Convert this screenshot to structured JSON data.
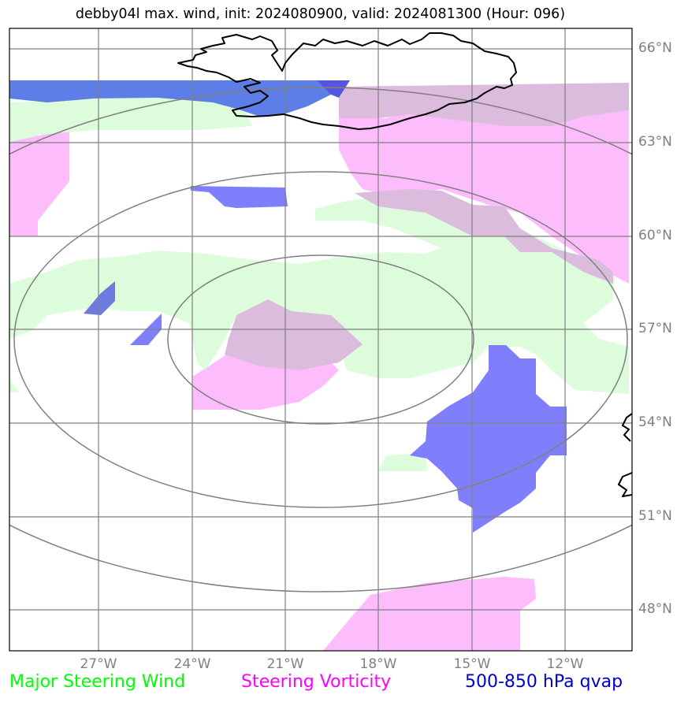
{
  "title": "debby04l max. wind, init: 2024080900, valid: 2024081300 (Hour: 096)",
  "lat_labels": [
    "66°N",
    "63°N",
    "60°N",
    "57°N",
    "54°N",
    "51°N",
    "48°N"
  ],
  "lon_labels": [
    "27°W",
    "24°W",
    "21°W",
    "18°W",
    "15°W",
    "12°W"
  ],
  "legend": {
    "wind": "Major Steering Wind",
    "vorticity": "Steering Vorticity",
    "qvap": "500-850 hPa qvap"
  },
  "colors": {
    "wind": "#00ff00",
    "wind_fill": "#dcfcdc",
    "vorticity": "#ff00ff",
    "vorticity_fill": "#fdbdfd",
    "overlap_fill": "#dcbcdc",
    "qvap": "#0000ff",
    "qvap_fill": "#7f7ffc",
    "grid": "#808080",
    "coast": "#000000"
  }
}
